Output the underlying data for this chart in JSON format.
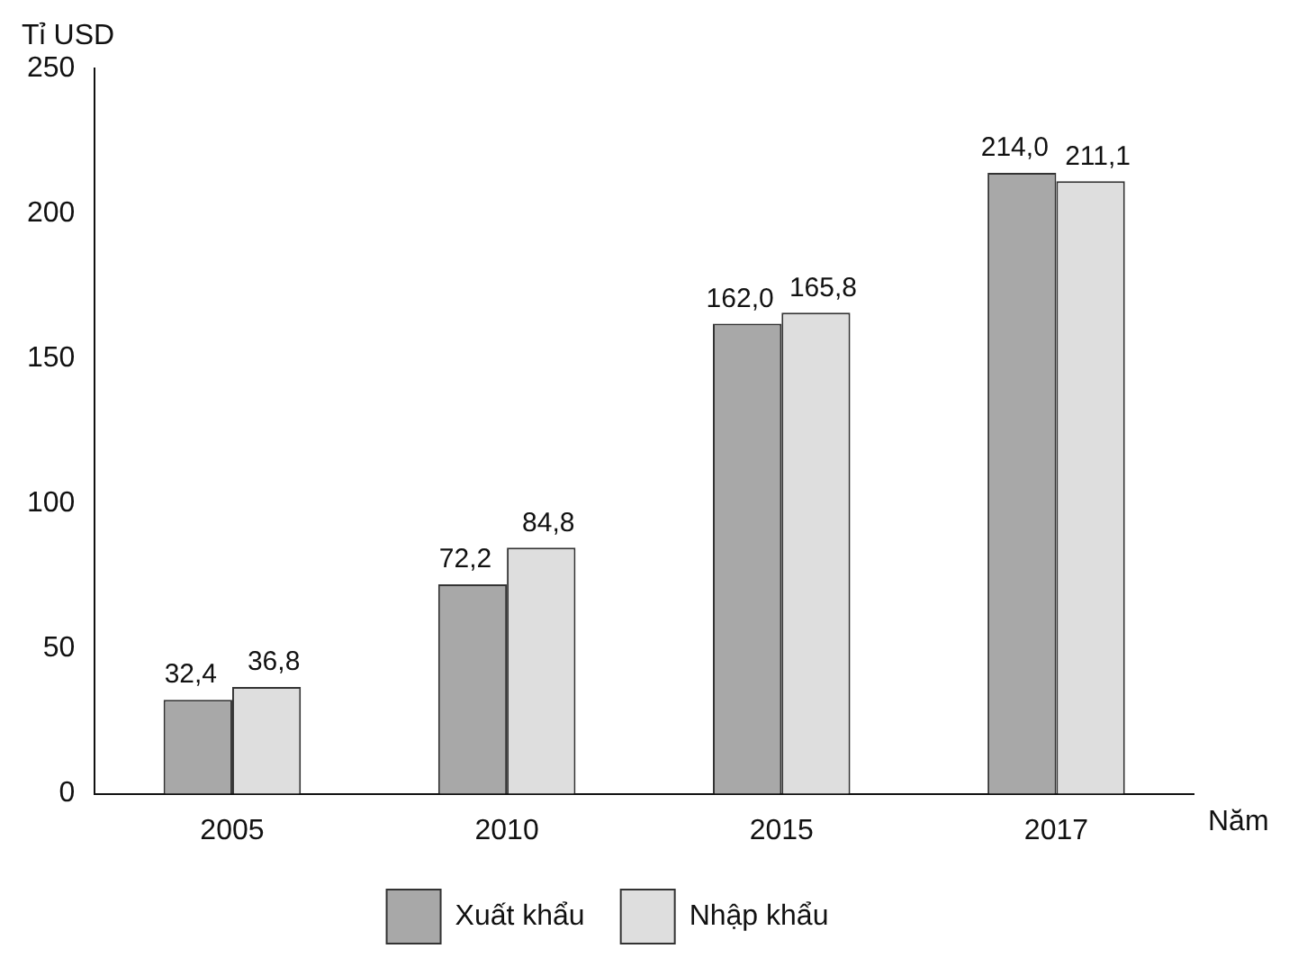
{
  "chart_data": {
    "type": "bar",
    "ylabel": "Tỉ USD",
    "xlabel": "Năm",
    "categories": [
      "2005",
      "2010",
      "2015",
      "2017"
    ],
    "series": [
      {
        "name": "Xuất khẩu",
        "color": "#a8a8a8",
        "values": [
          32.4,
          72.2,
          162.0,
          214.0
        ],
        "value_labels": [
          "32,4",
          "72,2",
          "162,0",
          "214,0"
        ]
      },
      {
        "name": "Nhập khẩu",
        "color": "#dedede",
        "values": [
          36.8,
          84.8,
          165.8,
          211.1
        ],
        "value_labels": [
          "36,8",
          "84,8",
          "165,8",
          "211,1"
        ]
      }
    ],
    "ylim": [
      0,
      250
    ],
    "yticks": [
      0,
      50,
      100,
      150,
      200,
      250
    ],
    "grid": false,
    "legend": "bottom"
  }
}
